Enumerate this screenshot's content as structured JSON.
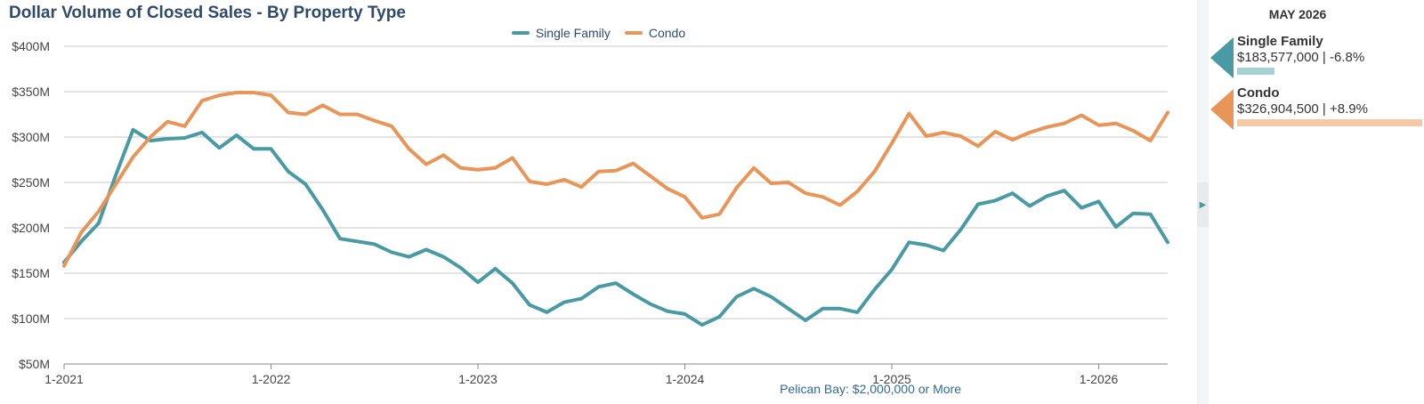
{
  "chart_data": {
    "type": "line",
    "title": "Dollar Volume of Closed Sales - By Property Type",
    "ylim": [
      50,
      400
    ],
    "y_ticks": [
      50,
      100,
      150,
      200,
      250,
      300,
      350,
      400
    ],
    "y_tick_labels": [
      "$50M",
      "$100M",
      "$150M",
      "$200M",
      "$250M",
      "$300M",
      "$350M",
      "$400M"
    ],
    "x_ticks": [
      0,
      12,
      24,
      36,
      48,
      60
    ],
    "x_tick_labels": [
      "1-2021",
      "1-2022",
      "1-2023",
      "1-2024",
      "1-2025",
      "1-2026"
    ],
    "x_unit": "months (Jan 2021 to May 2026)",
    "grid": true,
    "legend_position": "top-center",
    "series": [
      {
        "name": "Single Family",
        "color": "#4a9aa3",
        "values": [
          162,
          185,
          205,
          258,
          308,
          296,
          298,
          299,
          305,
          288,
          302,
          287,
          287,
          262,
          248,
          220,
          188,
          185,
          182,
          173,
          168,
          176,
          168,
          156,
          140,
          155,
          139,
          115,
          107,
          118,
          122,
          135,
          139,
          127,
          116,
          108,
          105,
          93,
          102,
          124,
          133,
          124,
          111,
          98,
          111,
          111,
          107,
          132,
          154,
          184,
          181,
          175,
          198,
          226,
          230,
          238,
          224,
          235,
          241,
          222,
          229,
          201,
          216,
          215,
          184
        ]
      },
      {
        "name": "Condo",
        "color": "#e8955a",
        "values": [
          158,
          195,
          218,
          248,
          278,
          300,
          317,
          312,
          340,
          346,
          349,
          349,
          346,
          327,
          325,
          335,
          325,
          325,
          318,
          312,
          287,
          270,
          280,
          266,
          264,
          266,
          277,
          251,
          248,
          253,
          245,
          262,
          263,
          271,
          257,
          243,
          234,
          211,
          215,
          244,
          266,
          249,
          250,
          238,
          234,
          225,
          240,
          262,
          293,
          326,
          301,
          305,
          301,
          290,
          306,
          297,
          305,
          311,
          315,
          324,
          313,
          315,
          307,
          296,
          327
        ]
      }
    ]
  },
  "footnote": "Pelican Bay: $2,000,000 or More",
  "panel": {
    "month": "MAY 2026",
    "cards": [
      {
        "name": "Single Family",
        "value": "$183,577,000 | -6.8%",
        "color": "#4a9aa3",
        "bar_color": "#a7d0d4",
        "bar_fraction": 0.2
      },
      {
        "name": "Condo",
        "value": "$326,904,500 | +8.9%",
        "color": "#e8955a",
        "bar_color": "#f3c9a8",
        "bar_fraction": 1.0
      }
    ]
  }
}
